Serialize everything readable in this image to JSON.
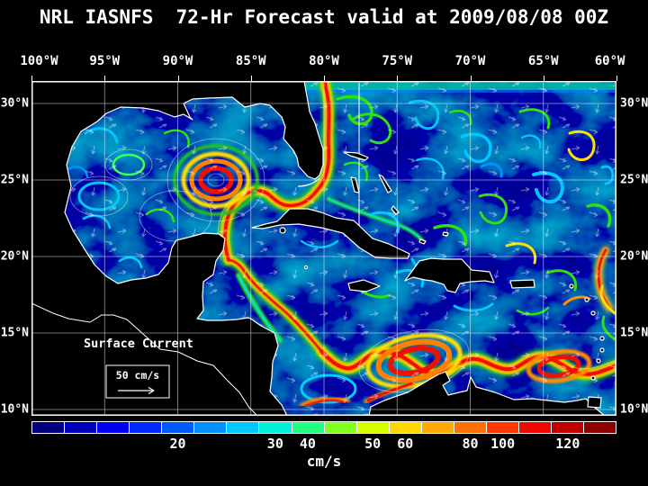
{
  "title": "NRL IASNFS  72-Hr Forecast valid at 2009/08/08 00Z",
  "axes": {
    "lon_labels": [
      "100°W",
      "95°W",
      "90°W",
      "85°W",
      "80°W",
      "75°W",
      "70°W",
      "65°W",
      "60°W"
    ],
    "lat_labels_left": [
      "30°N",
      "25°N",
      "20°N",
      "15°N",
      "10°N"
    ],
    "lat_labels_right": [
      "30°N",
      "25°N",
      "20°N",
      "15°N",
      "10°N"
    ]
  },
  "map": {
    "annotation": "Surface Current",
    "reference_vector_label": "50 cm/s"
  },
  "colorbar": {
    "units_label": "cm/s",
    "tick_labels": [
      "20",
      "30",
      "40",
      "50",
      "60",
      "80",
      "100",
      "120"
    ],
    "tick_cell_indices": [
      4,
      7,
      8,
      10,
      11,
      13,
      14,
      16
    ],
    "cell_colors": [
      "#000080",
      "#0000b8",
      "#0000f0",
      "#0028ff",
      "#0058ff",
      "#0090ff",
      "#00c8ff",
      "#00f0d8",
      "#20ff80",
      "#80ff20",
      "#d8ff00",
      "#ffd800",
      "#ffa800",
      "#ff7000",
      "#ff3800",
      "#f00800",
      "#c00000",
      "#8c0000"
    ]
  },
  "chart_data": {
    "type": "heatmap",
    "title": "NRL IASNFS 72-Hr Forecast valid at 2009/08/08 00Z",
    "model": "NRL IASNFS",
    "forecast_hour": "72-Hr Forecast",
    "valid_time": "2009/08/08 00Z",
    "variable": "Surface Current",
    "units": "cm/s",
    "x_axis": {
      "label": "Longitude",
      "range": [
        "100°W",
        "60°W"
      ],
      "ticks": [
        "100°W",
        "95°W",
        "90°W",
        "85°W",
        "80°W",
        "75°W",
        "70°W",
        "65°W",
        "60°W"
      ]
    },
    "y_axis": {
      "label": "Latitude",
      "range": [
        "10°N",
        "30°N"
      ],
      "ticks": [
        "30°N",
        "25°N",
        "20°N",
        "15°N",
        "10°N"
      ]
    },
    "color_scale": {
      "tick_values": [
        20,
        30,
        40,
        50,
        60,
        80,
        100,
        120
      ],
      "units": "cm/s",
      "segments": 18,
      "palette": "dark blue → blue → cyan → green → yellow → orange → red → dark red"
    },
    "reference_vector": "50 cm/s",
    "observed_high_speed_regions": [
      "concentric ring eddy near 87°W 25°N in the Gulf of Mexico (speeds > 100 cm/s)",
      "narrow intense current from Yucatan Channel through the Straits of Florida continuing north along ~80°W",
      "broad meandering high-speed band across the southern Caribbean ~10°N–15°N between 60°W and 80°W",
      "strong band east of the Lesser Antilles near 61°W 18°N–22°N"
    ],
    "background": "ocean field mostly 5–40 cm/s (dark blue to cyan/green) with white velocity arrows; land masses black with white coastlines"
  }
}
